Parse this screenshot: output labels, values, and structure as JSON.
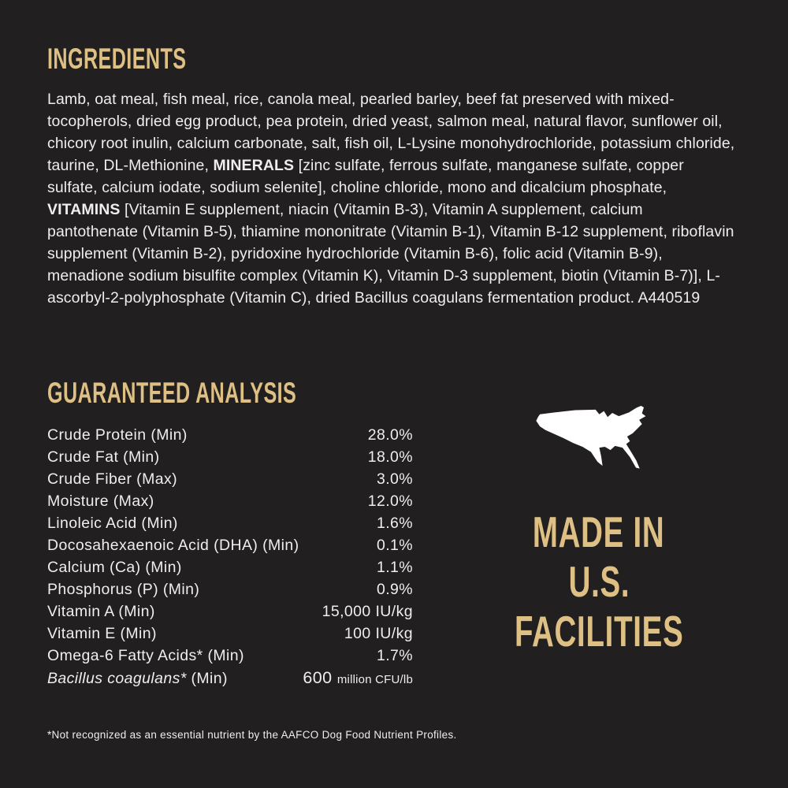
{
  "colors": {
    "bg": "#221F20",
    "accent": "#DEC084",
    "text": "#EFEDED",
    "map": "#FFFFFF"
  },
  "ingredients": {
    "heading": "INGREDIENTS",
    "segments": [
      {
        "text": "Lamb, oat meal, fish meal, rice, canola meal, pearled barley, beef fat preserved with mixed-tocopherols, dried egg product, pea protein, dried yeast, salmon meal, natural flavor, sunflower oil, chicory root inulin, calcium carbonate, salt, fish oil, L-Lysine monohydrochloride, potassium chloride, taurine, DL-Methionine, "
      },
      {
        "text": "MINERALS",
        "bold": true
      },
      {
        "text": " [zinc sulfate, ferrous sulfate, manganese sulfate, copper sulfate, calcium iodate, sodium selenite], choline chloride, mono and dicalcium phosphate, "
      },
      {
        "text": "VITAMINS",
        "bold": true
      },
      {
        "text": " [Vitamin E supplement, niacin (Vitamin B-3), Vitamin A supplement, calcium pantothenate (Vitamin B-5), thiamine mononitrate (Vitamin B-1), Vitamin B-12 supplement, riboflavin supplement (Vitamin B-2), pyridoxine hydrochloride (Vitamin B-6), folic acid (Vitamin B-9), menadione sodium bisulfite complex (Vitamin K), Vitamin D-3 supplement, biotin (Vitamin B-7)], L-ascorbyl-2-polyphosphate (Vitamin C), dried Bacillus coagulans fermentation product. A440519"
      }
    ]
  },
  "analysis": {
    "heading": "GUARANTEED ANALYSIS",
    "rows": [
      {
        "label": [
          {
            "text": "Crude Protein (Min)"
          }
        ],
        "value": [
          {
            "text": "28.0%"
          }
        ]
      },
      {
        "label": [
          {
            "text": "Crude Fat (Min)"
          }
        ],
        "value": [
          {
            "text": "18.0%"
          }
        ]
      },
      {
        "label": [
          {
            "text": "Crude Fiber (Max)"
          }
        ],
        "value": [
          {
            "text": "3.0%"
          }
        ]
      },
      {
        "label": [
          {
            "text": "Moisture (Max)"
          }
        ],
        "value": [
          {
            "text": "12.0%"
          }
        ]
      },
      {
        "label": [
          {
            "text": "Linoleic Acid (Min)"
          }
        ],
        "value": [
          {
            "text": "1.6%"
          }
        ]
      },
      {
        "label": [
          {
            "text": "Docosahexaenoic Acid (DHA) (Min)"
          }
        ],
        "value": [
          {
            "text": "0.1%"
          }
        ]
      },
      {
        "label": [
          {
            "text": "Calcium (Ca) (Min)"
          }
        ],
        "value": [
          {
            "text": "1.1%"
          }
        ]
      },
      {
        "label": [
          {
            "text": "Phosphorus (P) (Min)"
          }
        ],
        "value": [
          {
            "text": "0.9%"
          }
        ]
      },
      {
        "label": [
          {
            "text": "Vitamin A (Min)"
          }
        ],
        "value": [
          {
            "text": "15,000 IU/kg"
          }
        ]
      },
      {
        "label": [
          {
            "text": "Vitamin E (Min)"
          }
        ],
        "value": [
          {
            "text": "100 IU/kg"
          }
        ]
      },
      {
        "label": [
          {
            "text": "Omega-6 Fatty Acids* (Min)"
          }
        ],
        "value": [
          {
            "text": "1.7%"
          }
        ]
      },
      {
        "label": [
          {
            "text": "Bacillus coagulans*",
            "italic": true
          },
          {
            "text": " (Min)"
          }
        ],
        "value": [
          {
            "text": "600 ",
            "size": "big"
          },
          {
            "text": "million CFU/lb",
            "size": "small"
          }
        ]
      }
    ]
  },
  "made_in": {
    "map_icon": "usa-map-silhouette",
    "lines": [
      "MADE IN",
      "U.S.",
      "FACILITIES"
    ]
  },
  "footnote": {
    "text": "*Not recognized as an essential nutrient by the AAFCO Dog Food Nutrient Profiles."
  }
}
